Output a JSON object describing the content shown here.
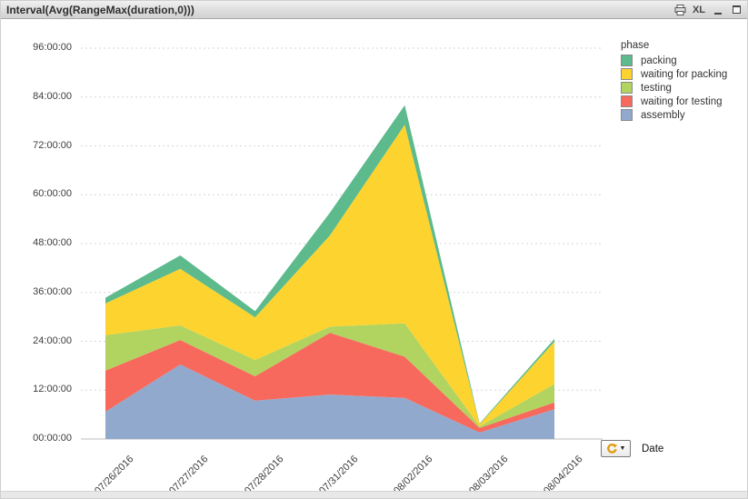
{
  "window": {
    "title": "Interval(Avg(RangeMax(duration,0)))",
    "excel_icon_label": "XL"
  },
  "legend": {
    "title": "phase",
    "items": [
      {
        "label": "packing",
        "color": "#5cba8d"
      },
      {
        "label": "waiting for packing",
        "color": "#fdd330"
      },
      {
        "label": "testing",
        "color": "#b1d35f"
      },
      {
        "label": "waiting for testing",
        "color": "#f7695c"
      },
      {
        "label": "assembly",
        "color": "#92a9ce"
      }
    ]
  },
  "x_axis_control": {
    "label": "Date",
    "icon": "cycle-icon"
  },
  "chart_data": {
    "type": "area",
    "stacked": true,
    "title": "Interval(Avg(RangeMax(duration,0)))",
    "xlabel": "Date",
    "ylabel": "",
    "y_unit": "hours",
    "ylim": [
      0,
      96
    ],
    "y_ticks": [
      "00:00:00",
      "12:00:00",
      "24:00:00",
      "36:00:00",
      "48:00:00",
      "60:00:00",
      "72:00:00",
      "84:00:00",
      "96:00:00"
    ],
    "grid": "horizontal-dashed",
    "legend_position": "right",
    "categories": [
      "07/26/2016",
      "07/27/2016",
      "07/28/2016",
      "07/31/2016",
      "08/02/2016",
      "08/03/2016",
      "08/04/2016"
    ],
    "series_stack_order": "bottom-to-top",
    "series": [
      {
        "name": "assembly",
        "color": "#92a9ce",
        "values": [
          6.7,
          18.3,
          9.4,
          10.9,
          10.1,
          1.6,
          7.3
        ]
      },
      {
        "name": "waiting for testing",
        "color": "#f7695c",
        "values": [
          10.1,
          6.0,
          6.0,
          15.2,
          10.1,
          1.1,
          1.7
        ]
      },
      {
        "name": "testing",
        "color": "#b1d35f",
        "values": [
          8.7,
          3.6,
          4.0,
          1.5,
          8.2,
          0.4,
          4.5
        ]
      },
      {
        "name": "waiting for packing",
        "color": "#fdd330",
        "values": [
          7.8,
          13.9,
          10.5,
          22.4,
          48.8,
          0.5,
          10.4
        ]
      },
      {
        "name": "packing",
        "color": "#5cba8d",
        "values": [
          1.4,
          3.3,
          1.5,
          5.6,
          4.8,
          0.2,
          0.7
        ]
      }
    ],
    "totals_hours": [
      34.7,
      45.1,
      31.4,
      55.6,
      82.0,
      3.8,
      24.6
    ]
  }
}
